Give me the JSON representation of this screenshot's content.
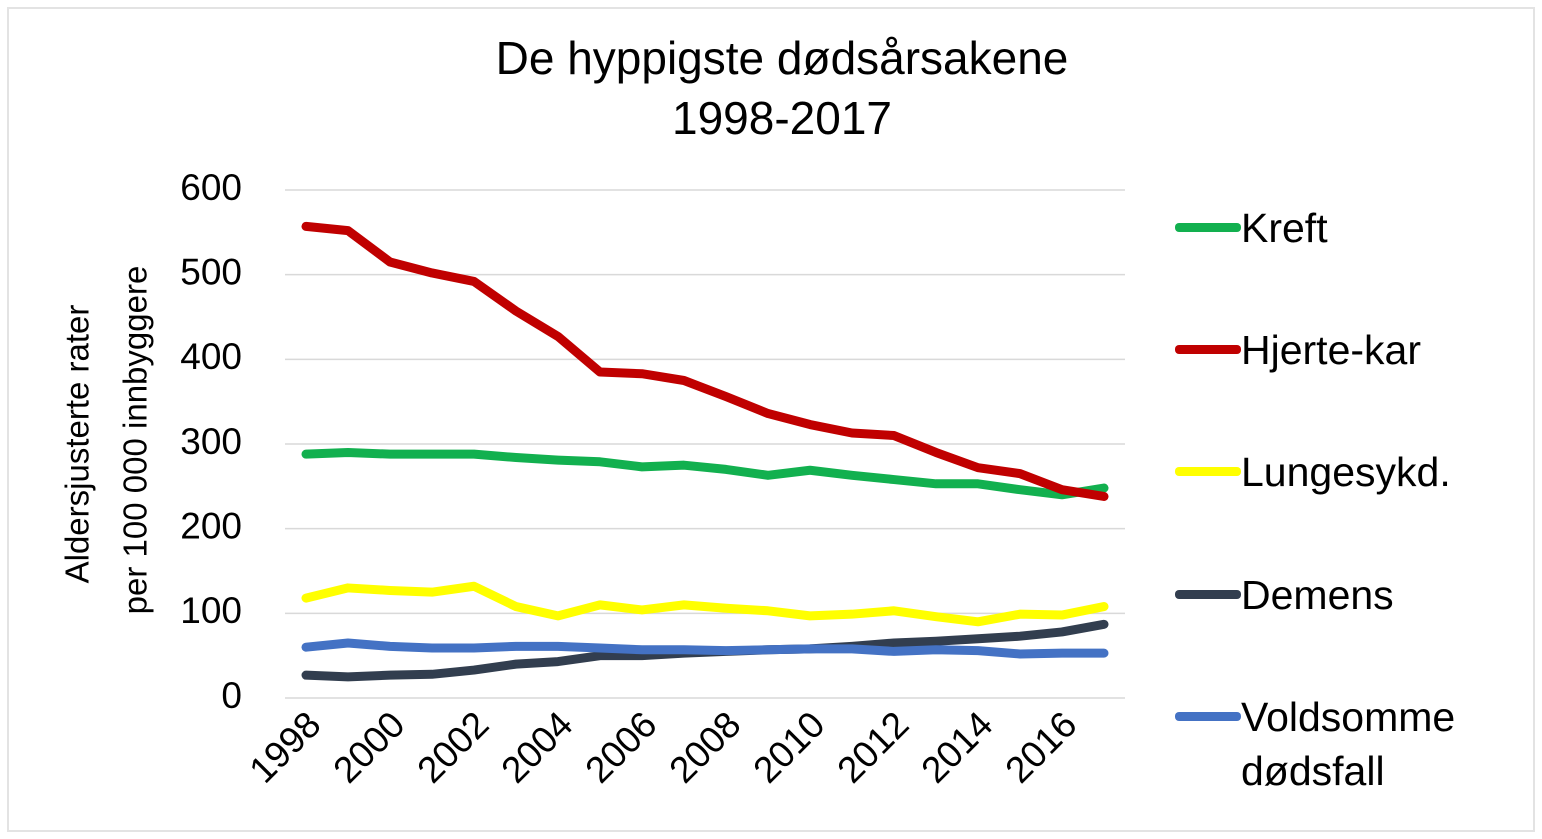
{
  "chart_data": {
    "type": "line",
    "title": [
      "De hyppigste dødsårsakene",
      "1998-2017"
    ],
    "y_label": [
      "Aldersjusterte  rater",
      "per 100 000 innbyggere"
    ],
    "x": [
      1998,
      1999,
      2000,
      2001,
      2002,
      2003,
      2004,
      2005,
      2006,
      2007,
      2008,
      2009,
      2010,
      2011,
      2012,
      2013,
      2014,
      2015,
      2016,
      2017
    ],
    "xlim": [
      1997.5,
      2017.5
    ],
    "xticks": [
      1998,
      2000,
      2002,
      2004,
      2006,
      2008,
      2010,
      2012,
      2014,
      2016
    ],
    "ylim": [
      0,
      600
    ],
    "yticks": [
      0,
      100,
      200,
      300,
      400,
      500,
      600
    ],
    "grid": true,
    "legend": "right",
    "series": [
      {
        "name": "Kreft",
        "color": "#12b04f",
        "values": [
          288,
          290,
          288,
          288,
          288,
          284,
          281,
          279,
          273,
          275,
          270,
          263,
          269,
          263,
          258,
          253,
          253,
          246,
          240,
          248
        ]
      },
      {
        "name": "Hjerte-kar",
        "color": "#c00000",
        "values": [
          557,
          552,
          515,
          502,
          492,
          457,
          427,
          385,
          383,
          375,
          356,
          336,
          323,
          313,
          310,
          290,
          272,
          265,
          246,
          238
        ]
      },
      {
        "name": "Lungesykd.",
        "color": "#ffff00",
        "values": [
          118,
          130,
          127,
          125,
          132,
          108,
          97,
          110,
          104,
          110,
          106,
          103,
          97,
          99,
          103,
          96,
          90,
          99,
          98,
          108
        ]
      },
      {
        "name": "Demens",
        "color": "#323e4f",
        "values": [
          27,
          25,
          27,
          28,
          33,
          40,
          43,
          50,
          50,
          53,
          55,
          57,
          58,
          61,
          65,
          67,
          70,
          73,
          78,
          87
        ]
      },
      {
        "name": "Voldsomme dødsfall",
        "color": "#4472c4",
        "values": [
          60,
          65,
          61,
          59,
          59,
          61,
          61,
          59,
          57,
          57,
          56,
          57,
          58,
          58,
          55,
          57,
          56,
          52,
          53,
          53
        ]
      }
    ]
  }
}
